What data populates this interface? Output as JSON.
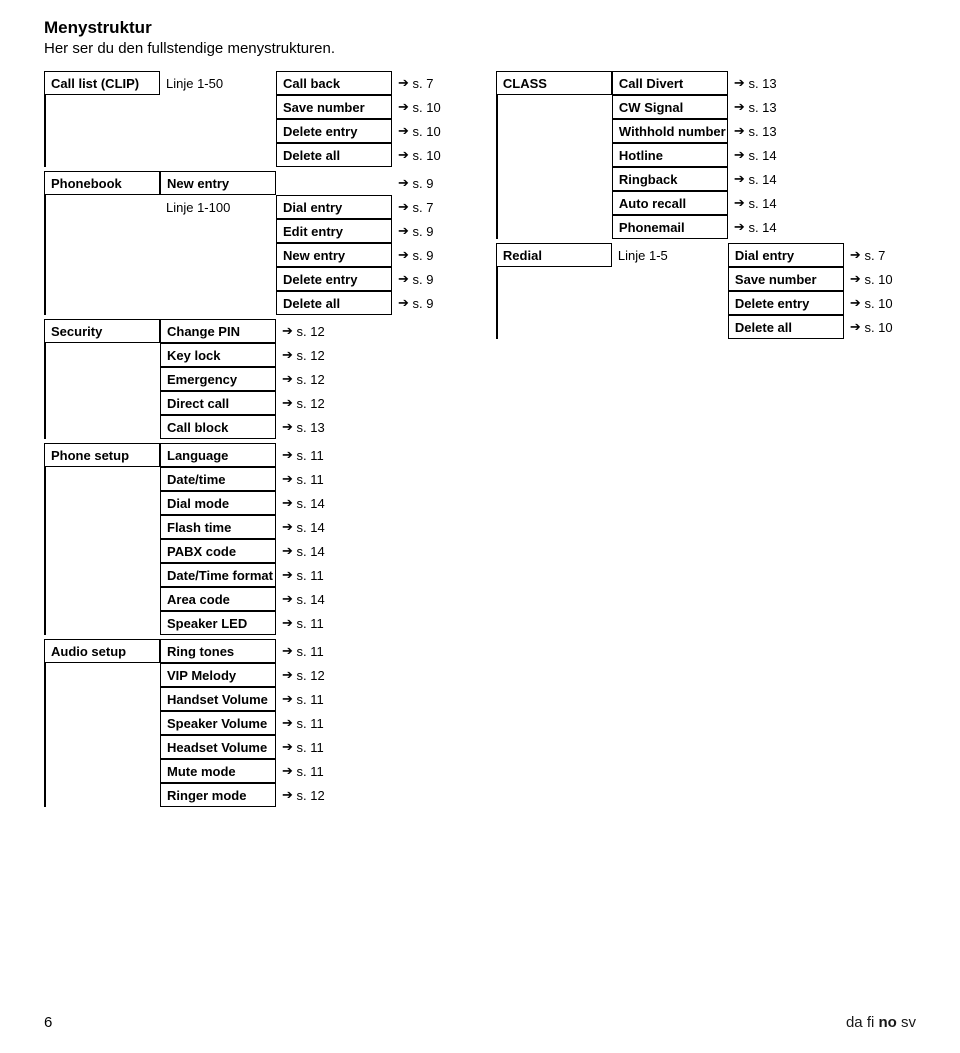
{
  "page": {
    "title": "Menystruktur",
    "subtitle": "Her ser du den fullstendige menystrukturen.",
    "page_number": "6",
    "lang_codes": [
      "da",
      "fi",
      "no",
      "sv"
    ],
    "current_lang": "no"
  },
  "left": [
    {
      "label": "Call list (CLIP)",
      "rows": [
        {
          "c2": "Linje 1-50",
          "c2_plain": true,
          "c3": "Call back",
          "ref": "s. 7"
        },
        {
          "c3": "Save number",
          "ref": "s. 10"
        },
        {
          "c3": "Delete entry",
          "ref": "s. 10"
        },
        {
          "c3": "Delete all",
          "ref": "s. 10"
        }
      ]
    },
    {
      "label": "Phonebook",
      "rows": [
        {
          "c2": "New entry",
          "ref": "s. 9"
        },
        {
          "c2": "Linje 1-100",
          "c2_plain": true,
          "c3": "Dial entry",
          "ref": "s. 7"
        },
        {
          "c3": "Edit entry",
          "ref": "s. 9"
        },
        {
          "c3": "New entry",
          "ref": "s. 9"
        },
        {
          "c3": "Delete entry",
          "ref": "s. 9"
        },
        {
          "c3": "Delete all",
          "ref": "s. 9"
        }
      ]
    },
    {
      "label": "Security",
      "rows": [
        {
          "c2": "Change PIN",
          "ref": "s. 12"
        },
        {
          "c2": "Key lock",
          "ref": "s. 12"
        },
        {
          "c2": "Emergency",
          "ref": "s. 12"
        },
        {
          "c2": "Direct call",
          "ref": "s. 12"
        },
        {
          "c2": "Call block",
          "ref": "s. 13"
        }
      ]
    },
    {
      "label": "Phone setup",
      "rows": [
        {
          "c2": "Language",
          "ref": "s. 11"
        },
        {
          "c2": "Date/time",
          "ref": "s. 11"
        },
        {
          "c2": "Dial mode",
          "ref": "s. 14"
        },
        {
          "c2": "Flash time",
          "ref": "s. 14"
        },
        {
          "c2": "PABX code",
          "ref": "s. 14"
        },
        {
          "c2": "Date/Time format",
          "ref": "s. 11"
        },
        {
          "c2": "Area code",
          "ref": "s. 14"
        },
        {
          "c2": "Speaker LED",
          "ref": "s. 11"
        }
      ]
    },
    {
      "label": "Audio setup",
      "rows": [
        {
          "c2": "Ring tones",
          "ref": "s. 11"
        },
        {
          "c2": "VIP Melody",
          "ref": "s. 12"
        },
        {
          "c2": "Handset Volume",
          "ref": "s. 11"
        },
        {
          "c2": "Speaker Volume",
          "ref": "s. 11"
        },
        {
          "c2": "Headset Volume",
          "ref": "s. 11"
        },
        {
          "c2": "Mute mode",
          "ref": "s. 11"
        },
        {
          "c2": "Ringer mode",
          "ref": "s. 12"
        }
      ]
    }
  ],
  "right": [
    {
      "label": "CLASS",
      "rows": [
        {
          "c2": "Call Divert",
          "ref": "s. 13"
        },
        {
          "c2": "CW Signal",
          "ref": "s. 13"
        },
        {
          "c2": "Withhold number",
          "ref": "s. 13"
        },
        {
          "c2": "Hotline",
          "ref": "s. 14"
        },
        {
          "c2": "Ringback",
          "ref": "s. 14"
        },
        {
          "c2": "Auto recall",
          "ref": "s. 14"
        },
        {
          "c2": "Phonemail",
          "ref": "s. 14"
        }
      ]
    },
    {
      "label": "Redial",
      "rows": [
        {
          "c2": "Linje 1-5",
          "c2_plain": true,
          "c3": "Dial entry",
          "ref": "s. 7"
        },
        {
          "c3": "Save number",
          "ref": "s. 10"
        },
        {
          "c3": "Delete entry",
          "ref": "s. 10"
        },
        {
          "c3": "Delete all",
          "ref": "s. 10"
        }
      ]
    }
  ]
}
